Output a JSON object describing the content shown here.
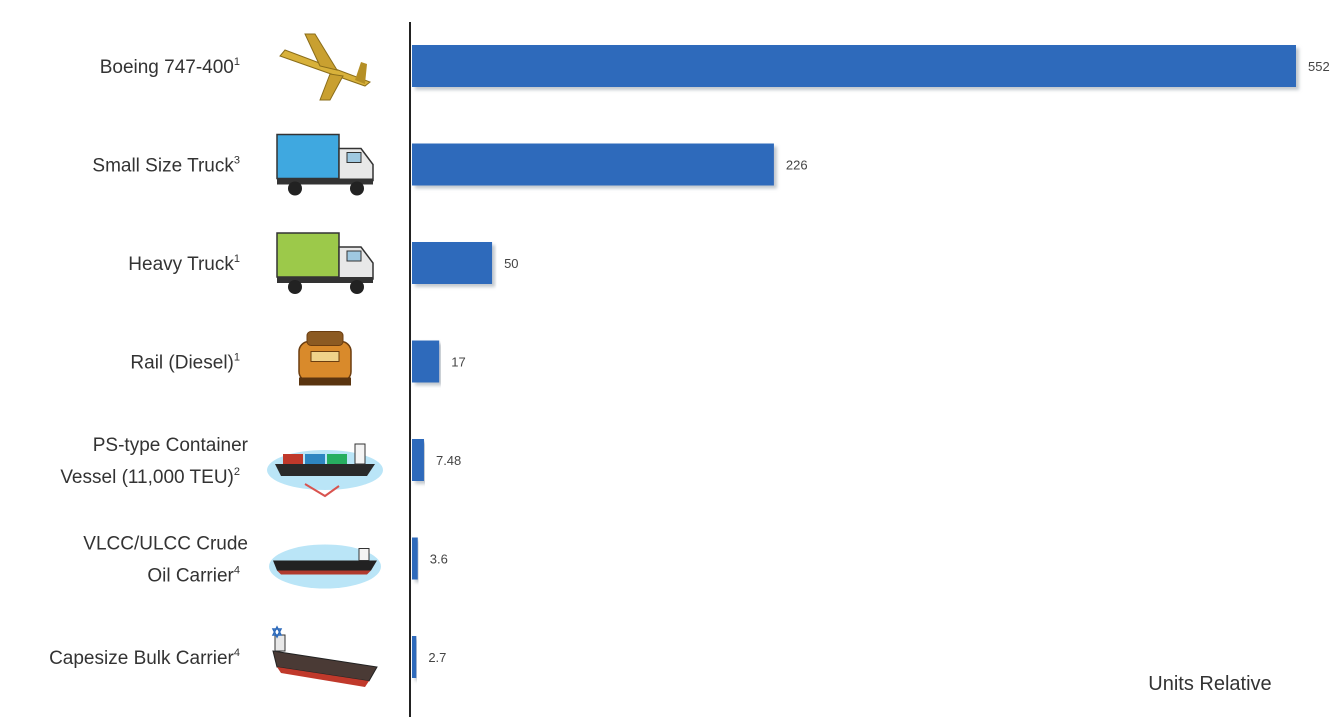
{
  "chart_data": {
    "type": "bar",
    "orientation": "horizontal",
    "categories": [
      {
        "lines": [
          "Boeing 747-400"
        ],
        "sup": "1",
        "icon": "airplane-icon"
      },
      {
        "lines": [
          "Small Size Truck"
        ],
        "sup": "3",
        "icon": "small-truck-icon"
      },
      {
        "lines": [
          "Heavy Truck"
        ],
        "sup": "1",
        "icon": "heavy-truck-icon"
      },
      {
        "lines": [
          "Rail (Diesel)"
        ],
        "sup": "1",
        "icon": "locomotive-icon"
      },
      {
        "lines": [
          "PS-type Container",
          "Vessel  (11,000 TEU)"
        ],
        "sup": "2",
        "icon": "container-ship-icon"
      },
      {
        "lines": [
          "VLCC/ULCC Crude",
          "Oil Carrier"
        ],
        "sup": "4",
        "icon": "oil-tanker-icon"
      },
      {
        "lines": [
          "Capesize Bulk Carrier"
        ],
        "sup": "4",
        "icon": "bulk-carrier-icon"
      }
    ],
    "values": [
      552,
      226,
      50,
      17,
      7.48,
      3.6,
      2.7
    ],
    "value_labels": [
      "552",
      "226",
      "50",
      "17",
      "7.48",
      "3.6",
      "2.7"
    ],
    "axis_note": "Units Relative",
    "bar_color": "#2e6bbb",
    "grid": false,
    "xlim": [
      0,
      552
    ]
  }
}
